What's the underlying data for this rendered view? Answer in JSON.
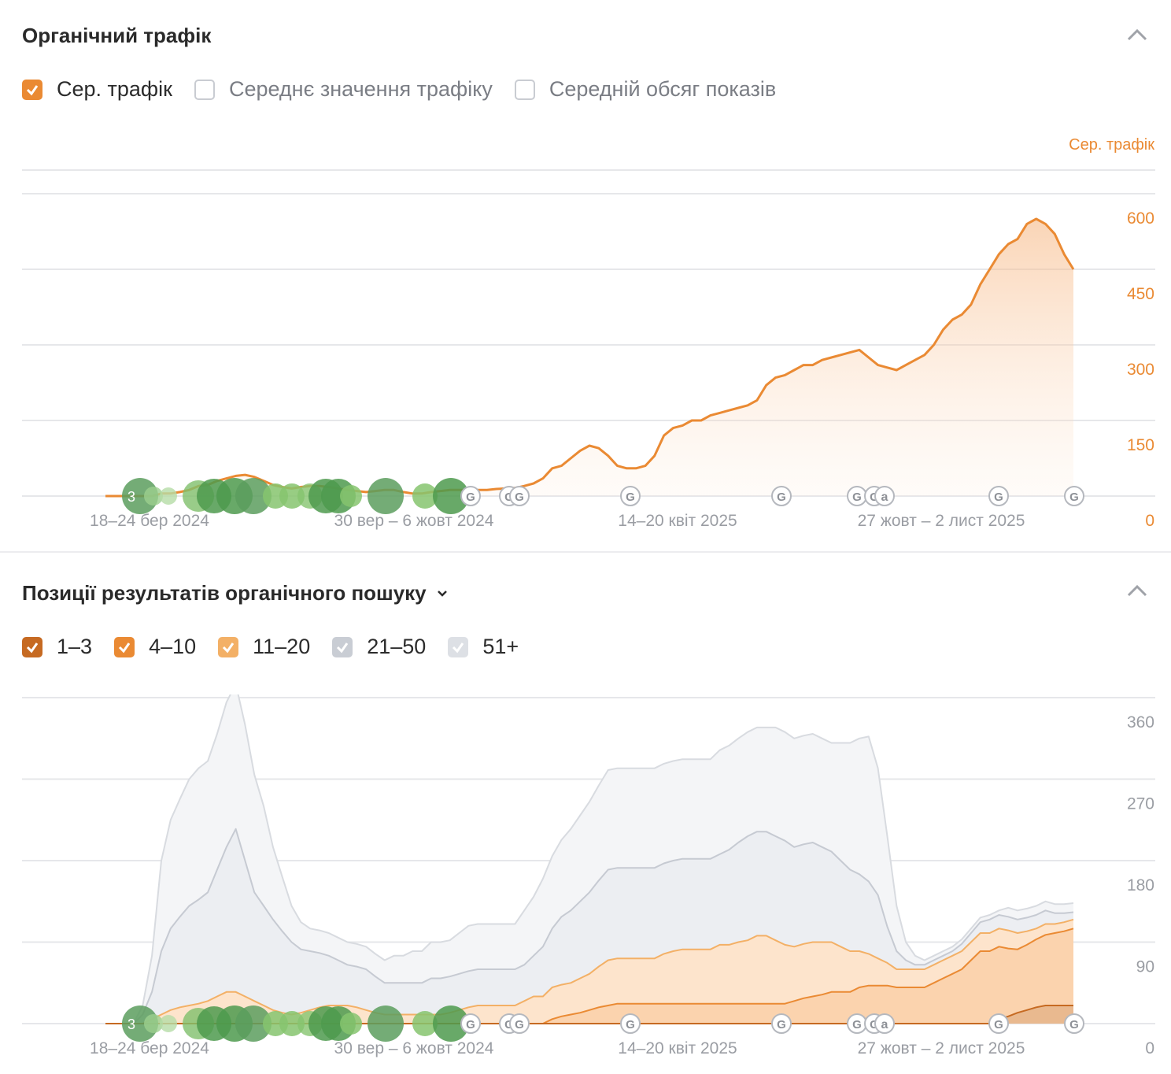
{
  "traffic_section": {
    "title": "Органічний трафік",
    "legend": [
      {
        "label": "Сер. трафік",
        "checked": true,
        "color": "#ea8a33"
      },
      {
        "label": "Середнє значення трафіку",
        "checked": false
      },
      {
        "label": "Середній обсяг показів",
        "checked": false
      }
    ],
    "axis_title": "Сер. трафік"
  },
  "positions_section": {
    "title": "Позиції результатів органічного пошуку",
    "legend": [
      {
        "label": "1–3",
        "checked": true,
        "color": "#c66a22"
      },
      {
        "label": "4–10",
        "checked": true,
        "color": "#ea8a33"
      },
      {
        "label": "11–20",
        "checked": true,
        "color": "#f3b066"
      },
      {
        "label": "21–50",
        "checked": true,
        "color": "#c9cdd4"
      },
      {
        "label": "51+",
        "checked": true,
        "color": "#dde0e5"
      }
    ]
  },
  "icons": {
    "collapse": "chevron-up-icon",
    "dropdown": "chevron-down-icon",
    "check": "check-icon"
  },
  "chart_data": [
    {
      "type": "area",
      "series": [
        {
          "name": "Сер. трафік",
          "color": "#ea8a33",
          "values": [
            0,
            0,
            0,
            0,
            0,
            0,
            5,
            5,
            8,
            12,
            20,
            22,
            30,
            35,
            40,
            42,
            38,
            30,
            22,
            18,
            15,
            18,
            20,
            20,
            18,
            15,
            12,
            10,
            8,
            10,
            12,
            12,
            8,
            5,
            5,
            8,
            10,
            12,
            12,
            12,
            12,
            12,
            14,
            15,
            16,
            20,
            25,
            35,
            55,
            60,
            75,
            90,
            100,
            95,
            80,
            60,
            55,
            55,
            60,
            80,
            120,
            135,
            140,
            150,
            150,
            160,
            165,
            170,
            175,
            180,
            190,
            220,
            235,
            240,
            250,
            260,
            260,
            270,
            275,
            280,
            285,
            290,
            275,
            260,
            255,
            250,
            260,
            270,
            280,
            300,
            330,
            350,
            360,
            380,
            420,
            450,
            480,
            500,
            510,
            540,
            550,
            540,
            520,
            480,
            450
          ]
        }
      ],
      "x_tick_labels": [
        "18–24 бер 2024",
        "30 вер – 6 жовт 2024",
        "14–20 квіт 2025",
        "27 жовт – 2 лист 2025"
      ],
      "ylim": [
        0,
        600
      ],
      "y_ticks": [
        0,
        150,
        300,
        450,
        600
      ],
      "annotations": [
        {
          "label": "3",
          "x": 3
        },
        {
          "label": "G",
          "x": 38
        },
        {
          "label": "G",
          "x": 42
        },
        {
          "label": "G",
          "x": 43
        },
        {
          "label": "G",
          "x": 55
        },
        {
          "label": "G",
          "x": 71
        },
        {
          "label": "G",
          "x": 79
        },
        {
          "label": "G",
          "x": 81
        },
        {
          "label": "a",
          "x": 82
        },
        {
          "label": "G",
          "x": 94
        },
        {
          "label": "G",
          "x": 102
        }
      ]
    },
    {
      "type": "area",
      "stacked": true,
      "series": [
        {
          "name": "1–3",
          "color": "#c66a22",
          "values": [
            0,
            0,
            0,
            0,
            0,
            0,
            0,
            0,
            0,
            0,
            0,
            0,
            0,
            0,
            0,
            0,
            0,
            0,
            0,
            0,
            0,
            0,
            0,
            0,
            0,
            0,
            0,
            0,
            0,
            0,
            0,
            0,
            0,
            0,
            0,
            0,
            0,
            0,
            0,
            0,
            0,
            0,
            0,
            0,
            0,
            0,
            0,
            0,
            0,
            0,
            0,
            0,
            0,
            0,
            0,
            0,
            0,
            0,
            0,
            0,
            0,
            0,
            0,
            0,
            0,
            0,
            0,
            0,
            0,
            0,
            0,
            0,
            0,
            0,
            0,
            0,
            0,
            0,
            0,
            0,
            0,
            0,
            0,
            0,
            0,
            0,
            0,
            0,
            0,
            0,
            0,
            0,
            0,
            0,
            0,
            0,
            5,
            8,
            12,
            15,
            18,
            20,
            20,
            20,
            20
          ]
        },
        {
          "name": "4–10",
          "color": "#ea8a33",
          "values": [
            0,
            0,
            0,
            0,
            0,
            0,
            0,
            0,
            0,
            0,
            0,
            0,
            0,
            0,
            0,
            0,
            0,
            0,
            0,
            0,
            0,
            0,
            0,
            0,
            0,
            0,
            0,
            0,
            0,
            0,
            0,
            0,
            0,
            0,
            0,
            0,
            0,
            0,
            0,
            0,
            0,
            0,
            0,
            0,
            0,
            0,
            0,
            0,
            5,
            8,
            10,
            12,
            15,
            18,
            20,
            22,
            22,
            22,
            22,
            22,
            22,
            22,
            22,
            22,
            22,
            22,
            22,
            22,
            22,
            22,
            22,
            22,
            22,
            22,
            25,
            28,
            30,
            32,
            35,
            35,
            35,
            40,
            42,
            42,
            42,
            40,
            40,
            40,
            40,
            45,
            50,
            55,
            60,
            70,
            80,
            80,
            80,
            75,
            70,
            72,
            75,
            78,
            80,
            82,
            85
          ]
        },
        {
          "name": "11–20",
          "color": "#f3b066",
          "values": [
            0,
            0,
            0,
            0,
            0,
            5,
            10,
            15,
            18,
            20,
            22,
            25,
            30,
            35,
            35,
            30,
            25,
            20,
            15,
            12,
            10,
            12,
            15,
            18,
            20,
            20,
            20,
            18,
            15,
            12,
            10,
            10,
            10,
            10,
            10,
            10,
            10,
            12,
            15,
            18,
            20,
            20,
            20,
            20,
            20,
            25,
            30,
            30,
            35,
            35,
            35,
            38,
            40,
            45,
            50,
            50,
            50,
            50,
            50,
            50,
            55,
            58,
            60,
            60,
            60,
            60,
            65,
            65,
            68,
            70,
            75,
            75,
            70,
            65,
            60,
            60,
            60,
            58,
            55,
            50,
            45,
            40,
            35,
            30,
            25,
            20,
            20,
            20,
            20,
            20,
            20,
            20,
            20,
            20,
            20,
            20,
            20,
            20,
            18,
            15,
            12,
            12,
            10,
            10,
            10
          ]
        },
        {
          "name": "21–50",
          "color": "#c9cdd4",
          "values": [
            0,
            0,
            0,
            0,
            10,
            30,
            70,
            90,
            100,
            110,
            115,
            120,
            140,
            160,
            180,
            150,
            120,
            110,
            100,
            90,
            80,
            70,
            65,
            60,
            55,
            50,
            45,
            45,
            45,
            40,
            35,
            35,
            35,
            35,
            35,
            40,
            40,
            40,
            40,
            40,
            40,
            40,
            40,
            40,
            40,
            40,
            45,
            55,
            65,
            75,
            80,
            85,
            90,
            95,
            100,
            100,
            100,
            100,
            100,
            100,
            100,
            100,
            100,
            100,
            100,
            100,
            100,
            105,
            110,
            115,
            115,
            115,
            115,
            115,
            110,
            110,
            110,
            105,
            100,
            95,
            90,
            85,
            80,
            70,
            40,
            20,
            10,
            5,
            5,
            5,
            5,
            5,
            8,
            10,
            12,
            15,
            15,
            15,
            15,
            15,
            15,
            15,
            12,
            10,
            8
          ]
        },
        {
          "name": "51+",
          "color": "#dde0e5",
          "values": [
            0,
            0,
            0,
            0,
            10,
            40,
            100,
            120,
            130,
            140,
            145,
            145,
            150,
            160,
            160,
            150,
            130,
            110,
            80,
            60,
            40,
            30,
            25,
            25,
            25,
            25,
            25,
            25,
            25,
            25,
            25,
            30,
            30,
            35,
            35,
            40,
            40,
            40,
            45,
            50,
            50,
            50,
            50,
            50,
            50,
            60,
            65,
            75,
            80,
            85,
            90,
            95,
            100,
            105,
            110,
            110,
            110,
            110,
            110,
            110,
            110,
            110,
            110,
            110,
            110,
            110,
            115,
            115,
            115,
            115,
            115,
            115,
            120,
            120,
            120,
            120,
            120,
            120,
            120,
            130,
            140,
            150,
            160,
            140,
            100,
            50,
            20,
            10,
            5,
            5,
            5,
            5,
            5,
            5,
            5,
            5,
            5,
            10,
            10,
            10,
            10,
            10,
            10,
            10,
            10
          ]
        }
      ],
      "x_tick_labels": [
        "18–24 бер 2024",
        "30 вер – 6 жовт 2024",
        "14–20 квіт 2025",
        "27 жовт – 2 лист 2025"
      ],
      "ylim": [
        0,
        360
      ],
      "y_ticks": [
        0,
        90,
        180,
        270,
        360
      ]
    }
  ]
}
